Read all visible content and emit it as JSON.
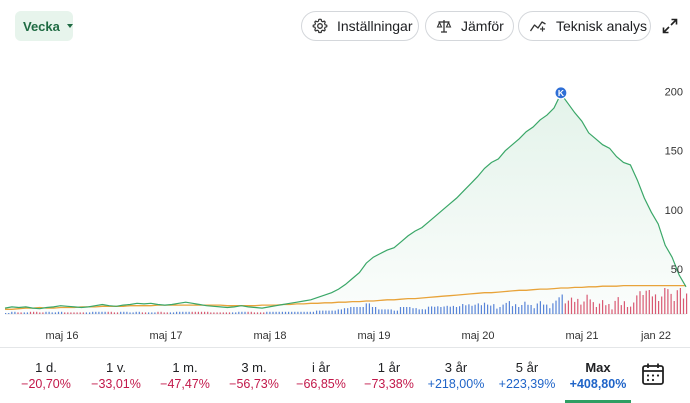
{
  "toolbar": {
    "period_label": "Vecka",
    "settings_label": "Inställningar",
    "compare_label": "Jämför",
    "technical_label": "Teknisk analys"
  },
  "colors": {
    "price_line": "#3aa768",
    "average_line": "#e8a33a",
    "volume_up": "#3b6fd1",
    "volume_down": "#d23c5a",
    "accent": "#2e9e63"
  },
  "chart_data": {
    "type": "line",
    "x_ticks": [
      "maj 16",
      "maj 17",
      "maj 18",
      "maj 19",
      "maj 20",
      "maj 21",
      "jan 22"
    ],
    "y_ticks": [
      50,
      100,
      150,
      200
    ],
    "ylim": [
      12,
      208
    ],
    "marker_label": "K",
    "marker_value": 198,
    "series": [
      {
        "values": [
          17,
          18,
          17.5,
          18,
          17,
          16.5,
          17.5,
          18,
          19,
          18.5,
          18,
          17.5,
          18,
          19,
          20,
          19,
          18.5,
          19.5,
          20,
          21,
          20.5,
          21,
          20,
          19.5,
          20,
          21,
          22,
          21,
          20,
          19,
          18.5,
          18,
          17.5,
          18,
          19,
          18,
          17.5,
          17,
          18,
          19,
          20,
          21,
          22,
          23,
          24,
          26,
          28,
          30,
          33,
          37,
          42,
          47,
          55,
          60,
          63,
          66,
          68,
          73,
          78,
          82,
          85,
          90,
          95,
          100,
          105,
          110,
          116,
          122,
          128,
          135,
          140,
          143,
          150,
          155,
          160,
          166,
          170,
          176,
          180,
          186,
          198,
          190,
          182,
          175,
          165,
          160,
          155,
          152,
          145,
          140,
          138,
          125,
          110,
          98,
          88,
          70,
          60,
          45,
          35
        ]
      },
      {
        "values": [
          16,
          16,
          16.5,
          17,
          17,
          17.5,
          17,
          17,
          17.5,
          17.5,
          17.5,
          18,
          18,
          18,
          18.5,
          18.5,
          18.5,
          18.5,
          19,
          19,
          19,
          19,
          19.5,
          19.5,
          19.5,
          19.5,
          19.5,
          19.5,
          19.5,
          19.5,
          19.5,
          19.5,
          19,
          19,
          19,
          19,
          19,
          19.5,
          19.5,
          19.5,
          20,
          20,
          20.5,
          20.5,
          21,
          21,
          21.5,
          21.5,
          22,
          22,
          22.5,
          22.5,
          23,
          23,
          23.5,
          24,
          24,
          24.5,
          25,
          25,
          25.5,
          26,
          26.5,
          27,
          27.5,
          28,
          28.5,
          29,
          29.5,
          30,
          30,
          30.5,
          31,
          31.5,
          32,
          32,
          32.5,
          33,
          33,
          33.5,
          34,
          34,
          34.5,
          34.5,
          35,
          35,
          35.5,
          35.5,
          35.5,
          36,
          36,
          36,
          36,
          36,
          36,
          36,
          36,
          36,
          36
        ]
      }
    ]
  },
  "ranges": [
    {
      "label": "1 d.",
      "value": "−20,70%",
      "sign": "neg"
    },
    {
      "label": "1 v.",
      "value": "−33,01%",
      "sign": "neg"
    },
    {
      "label": "1 m.",
      "value": "−47,47%",
      "sign": "neg"
    },
    {
      "label": "3 m.",
      "value": "−56,73%",
      "sign": "neg"
    },
    {
      "label": "i år",
      "value": "−66,85%",
      "sign": "neg"
    },
    {
      "label": "1 år",
      "value": "−73,38%",
      "sign": "neg"
    },
    {
      "label": "3 år",
      "value": "+218,00%",
      "sign": "pos"
    },
    {
      "label": "5 år",
      "value": "+223,39%",
      "sign": "pos"
    },
    {
      "label": "Max",
      "value": "+408,80%",
      "sign": "pos",
      "active": true
    }
  ]
}
